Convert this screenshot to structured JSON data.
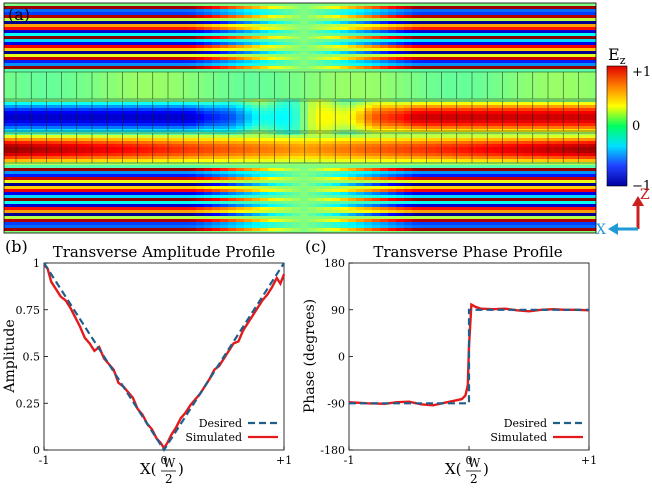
{
  "chart_data": [
    {
      "panel": "(a)",
      "type": "heatmap",
      "title": "",
      "colorbar": {
        "label_main": "E",
        "label_sub": "z",
        "ticks": [
          "+1",
          "0",
          "−1"
        ],
        "colors": [
          "#e00000",
          "#ff7f00",
          "#ffff00",
          "#00ff60",
          "#00e0ff",
          "#2040ff",
          "#0000a0"
        ]
      },
      "axes_indicator": {
        "z_label": "Z",
        "x_label": "X",
        "z_color": "#cc1f1f",
        "x_color": "#1f9ad6"
      }
    },
    {
      "panel": "(b)",
      "type": "line",
      "title": "Transverse Amplitude Profile",
      "ylabel": "Amplitude",
      "xlabel_main": "X(",
      "xlabel_num": "W",
      "xlabel_den": "2",
      "xlabel_close": ")",
      "xticks": [
        "-1",
        "0",
        "+1"
      ],
      "yticks": [
        "0",
        "0.25",
        "0.5",
        "0.75",
        "1"
      ],
      "xlim": [
        -1,
        1
      ],
      "ylim": [
        0,
        1
      ],
      "legend_position": "bottom-right",
      "series": [
        {
          "name": "Desired",
          "color": "#1f5f8b",
          "dash": true,
          "x": [
            -1,
            0,
            1
          ],
          "y": [
            1,
            0,
            1
          ]
        },
        {
          "name": "Simulated",
          "color": "#e41a1a",
          "dash": false,
          "x": [
            -1,
            -0.97,
            -0.94,
            -0.9,
            -0.86,
            -0.82,
            -0.78,
            -0.74,
            -0.7,
            -0.66,
            -0.62,
            -0.58,
            -0.54,
            -0.5,
            -0.46,
            -0.42,
            -0.38,
            -0.34,
            -0.3,
            -0.26,
            -0.22,
            -0.18,
            -0.14,
            -0.1,
            -0.06,
            -0.03,
            0,
            0.03,
            0.06,
            0.1,
            0.14,
            0.18,
            0.22,
            0.26,
            0.3,
            0.34,
            0.38,
            0.42,
            0.46,
            0.5,
            0.54,
            0.58,
            0.62,
            0.66,
            0.7,
            0.74,
            0.78,
            0.82,
            0.86,
            0.9,
            0.94,
            0.97,
            1
          ],
          "y": [
            0.99,
            0.97,
            0.9,
            0.86,
            0.82,
            0.8,
            0.76,
            0.71,
            0.66,
            0.6,
            0.57,
            0.53,
            0.55,
            0.49,
            0.46,
            0.43,
            0.36,
            0.34,
            0.31,
            0.28,
            0.22,
            0.19,
            0.14,
            0.11,
            0.06,
            0.04,
            0.01,
            0.04,
            0.08,
            0.12,
            0.17,
            0.2,
            0.24,
            0.27,
            0.3,
            0.34,
            0.38,
            0.43,
            0.45,
            0.49,
            0.53,
            0.57,
            0.58,
            0.64,
            0.68,
            0.72,
            0.76,
            0.8,
            0.83,
            0.87,
            0.92,
            0.89,
            0.94
          ]
        }
      ]
    },
    {
      "panel": "(c)",
      "type": "line",
      "title": "Transverse Phase Profile",
      "ylabel": "Phase (degrees)",
      "xlabel_main": "X(",
      "xlabel_num": "W",
      "xlabel_den": "2",
      "xlabel_close": ")",
      "xticks": [
        "-1",
        "0",
        "+1"
      ],
      "yticks": [
        "-180",
        "-90",
        "0",
        "90",
        "180"
      ],
      "xlim": [
        -1,
        1
      ],
      "ylim": [
        -180,
        180
      ],
      "legend_position": "bottom-right",
      "series": [
        {
          "name": "Desired",
          "color": "#1f5f8b",
          "dash": true,
          "x": [
            -1,
            0,
            0,
            1
          ],
          "y": [
            -90,
            -90,
            90,
            90
          ]
        },
        {
          "name": "Simulated",
          "color": "#e41a1a",
          "dash": false,
          "x": [
            -1,
            -0.85,
            -0.7,
            -0.6,
            -0.5,
            -0.4,
            -0.3,
            -0.2,
            -0.12,
            -0.06,
            -0.03,
            -0.01,
            0,
            0.02,
            0.05,
            0.1,
            0.2,
            0.3,
            0.4,
            0.5,
            0.6,
            0.7,
            0.8,
            0.9,
            1
          ],
          "y": [
            -88,
            -90,
            -91,
            -88,
            -87,
            -92,
            -94,
            -89,
            -85,
            -82,
            -75,
            -55,
            20,
            100,
            96,
            92,
            91,
            92,
            89,
            87,
            90,
            91,
            90,
            90,
            89
          ]
        }
      ]
    }
  ]
}
